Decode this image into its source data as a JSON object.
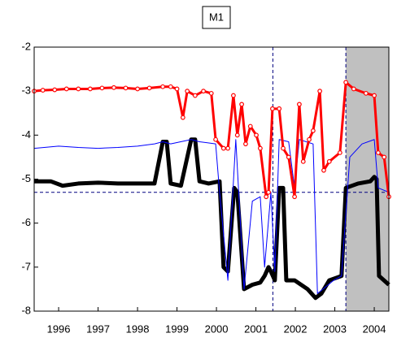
{
  "chart_data": {
    "type": "line",
    "title": "M1",
    "xlim": [
      1995.88,
      2004.87
    ],
    "ylim": [
      -8,
      -2
    ],
    "yticks": [
      -8,
      -7,
      -6,
      -5,
      -4,
      -3,
      -2
    ],
    "xticks": [
      {
        "value": 1996.5,
        "label": "1996"
      },
      {
        "value": 1997.5,
        "label": "1997"
      },
      {
        "value": 1998.5,
        "label": "1998"
      },
      {
        "value": 1999.5,
        "label": "1999"
      },
      {
        "value": 2000.5,
        "label": "2000"
      },
      {
        "value": 2001.5,
        "label": "2001"
      },
      {
        "value": 2002.5,
        "label": "2002"
      },
      {
        "value": 2003.5,
        "label": "2003"
      },
      {
        "value": 2004.5,
        "label": "2004"
      }
    ],
    "shade_x": [
      2003.78,
      2004.87
    ],
    "shade_color": "#c0c0c0",
    "vline_x": 2001.93,
    "hline_y": -5.3,
    "series": [
      {
        "color": "#000000",
        "width": 5,
        "markers": false,
        "x": [
          1995.88,
          1996.3,
          1996.6,
          1997.0,
          1997.5,
          1998.0,
          1998.5,
          1998.93,
          1999.14,
          1999.24,
          1999.34,
          1999.6,
          1999.86,
          1999.96,
          2000.07,
          2000.3,
          2000.58,
          2000.68,
          2000.79,
          2000.95,
          2001.03,
          2001.2,
          2001.41,
          2001.61,
          2001.72,
          2001.82,
          2001.88,
          2001.98,
          2002.09,
          2002.19,
          2002.27,
          2002.48,
          2002.81,
          2003.01,
          2003.16,
          2003.36,
          2003.67,
          2003.78,
          2004.09,
          2004.4,
          2004.5,
          2004.56,
          2004.62,
          2004.87
        ],
        "values": [
          -5.05,
          -5.05,
          -5.15,
          -5.1,
          -5.08,
          -5.1,
          -5.1,
          -5.1,
          -4.15,
          -4.15,
          -5.1,
          -5.15,
          -4.1,
          -4.1,
          -5.05,
          -5.1,
          -5.05,
          -7.0,
          -7.1,
          -5.2,
          -5.3,
          -7.5,
          -7.4,
          -7.35,
          -7.2,
          -7.0,
          -7.1,
          -7.3,
          -5.2,
          -5.2,
          -7.3,
          -7.3,
          -7.5,
          -7.7,
          -7.6,
          -7.3,
          -7.2,
          -5.2,
          -5.1,
          -5.05,
          -4.95,
          -5.0,
          -7.2,
          -7.4
        ]
      },
      {
        "color": "#0000ff",
        "width": 1,
        "markers": false,
        "x": [
          1995.88,
          1996.5,
          1997.0,
          1997.5,
          1998.0,
          1998.5,
          1998.93,
          1999.14,
          1999.34,
          1999.86,
          2000.07,
          2000.48,
          2000.58,
          2000.79,
          2000.99,
          2001.2,
          2001.41,
          2001.61,
          2001.72,
          2001.88,
          2001.98,
          2002.09,
          2002.33,
          2002.48,
          2002.6,
          2002.95,
          2003.06,
          2003.47,
          2003.67,
          2003.88,
          2004.19,
          2004.5,
          2004.6,
          2004.87
        ],
        "values": [
          -4.3,
          -4.25,
          -4.28,
          -4.3,
          -4.28,
          -4.25,
          -4.2,
          -4.15,
          -4.2,
          -4.1,
          -4.15,
          -4.2,
          -5.3,
          -7.3,
          -4.1,
          -7.5,
          -5.5,
          -5.4,
          -7.0,
          -5.3,
          -7.1,
          -4.1,
          -4.15,
          -5.2,
          -4.1,
          -4.2,
          -7.6,
          -7.3,
          -7.2,
          -4.5,
          -4.2,
          -4.1,
          -5.2,
          -5.3
        ]
      },
      {
        "color": "#ff0000",
        "width": 3,
        "markers": true,
        "x": [
          1995.88,
          1996.1,
          1996.4,
          1996.7,
          1997.0,
          1997.3,
          1997.6,
          1997.9,
          1998.2,
          1998.5,
          1998.8,
          1999.14,
          1999.34,
          1999.5,
          1999.65,
          1999.76,
          1999.96,
          2000.17,
          2000.37,
          2000.48,
          2000.68,
          2000.79,
          2000.93,
          2001.03,
          2001.14,
          2001.24,
          2001.36,
          2001.51,
          2001.61,
          2001.76,
          2001.82,
          2001.92,
          2002.09,
          2002.19,
          2002.33,
          2002.48,
          2002.6,
          2002.7,
          2002.85,
          2002.95,
          2003.12,
          2003.22,
          2003.36,
          2003.63,
          2003.78,
          2003.98,
          2004.29,
          2004.5,
          2004.6,
          2004.75,
          2004.87
        ],
        "values": [
          -3.0,
          -2.98,
          -2.97,
          -2.95,
          -2.95,
          -2.95,
          -2.93,
          -2.92,
          -2.93,
          -2.95,
          -2.93,
          -2.9,
          -2.9,
          -2.95,
          -3.6,
          -3.0,
          -3.1,
          -3.0,
          -3.05,
          -4.1,
          -4.3,
          -4.3,
          -3.1,
          -4.0,
          -3.3,
          -4.2,
          -3.8,
          -4.0,
          -4.3,
          -5.4,
          -5.3,
          -3.4,
          -3.4,
          -4.3,
          -4.5,
          -5.4,
          -3.3,
          -4.6,
          -4.1,
          -3.9,
          -3.0,
          -4.8,
          -4.6,
          -4.4,
          -2.8,
          -2.95,
          -3.05,
          -3.1,
          -4.4,
          -4.5,
          -5.4
        ]
      }
    ]
  }
}
